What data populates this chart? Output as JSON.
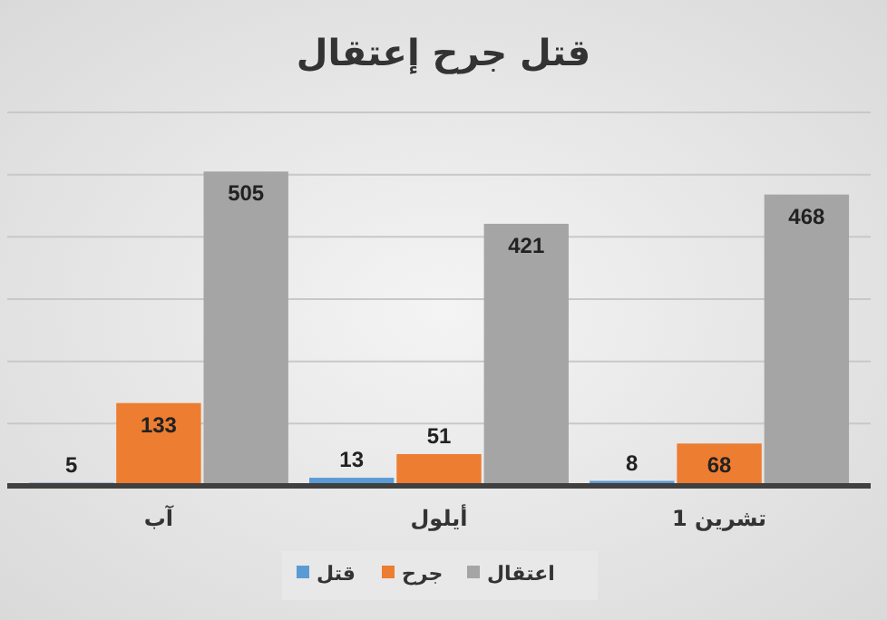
{
  "chart_data": {
    "type": "bar",
    "title": "قتل جرح إعتقال",
    "categories": [
      "آب",
      "أيلول",
      "تشرين 1"
    ],
    "series": [
      {
        "name": "قتل",
        "color": "#5b9bd5",
        "values": [
          5,
          13,
          8
        ]
      },
      {
        "name": "جرح",
        "color": "#ed7d31",
        "values": [
          133,
          51,
          68
        ]
      },
      {
        "name": "اعتقال",
        "color": "#a5a5a5",
        "values": [
          505,
          421,
          468
        ]
      }
    ],
    "ylim": [
      0,
      600
    ],
    "yticks": [
      {
        "value": 0,
        "label": null
      },
      {
        "value": 100,
        "label": null
      },
      {
        "value": 200,
        "label": null
      },
      {
        "value": 300,
        "label": null
      },
      {
        "value": 400,
        "label": null
      },
      {
        "value": 500,
        "label": null
      },
      {
        "value": 600,
        "label": null
      }
    ],
    "tick_labels": "x",
    "grid": "y",
    "legend": "bottom",
    "data_labels": true
  }
}
